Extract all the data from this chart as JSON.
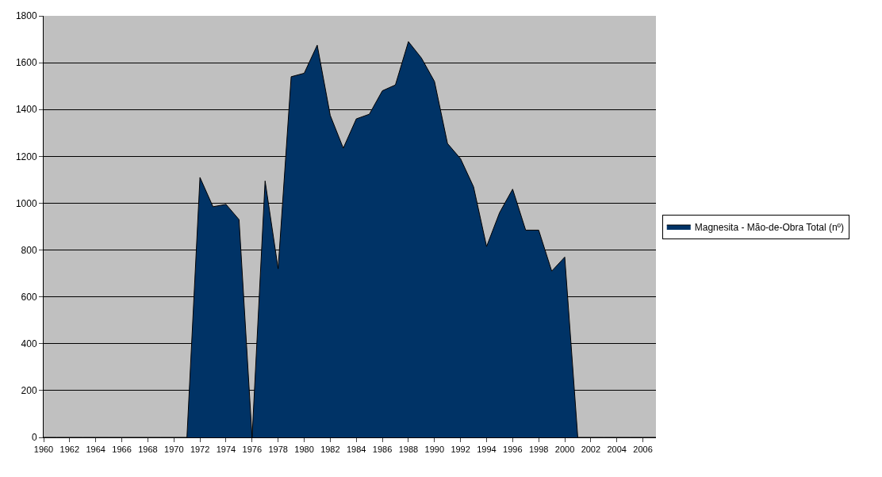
{
  "chart_data": {
    "type": "area",
    "categories": [
      "1960",
      null,
      "1962",
      null,
      "1964",
      null,
      "1966",
      null,
      "1968",
      null,
      "1970",
      null,
      "1972",
      null,
      "1974",
      null,
      "1976",
      null,
      "1978",
      null,
      "1980",
      null,
      "1982",
      null,
      "1984",
      null,
      "1986",
      null,
      "1988",
      null,
      "1990",
      null,
      "1992",
      null,
      "1994",
      null,
      "1996",
      null,
      "1998",
      null,
      "2000",
      null,
      "2002",
      null,
      "2004",
      null,
      "2006",
      null
    ],
    "series": [
      {
        "name": "Magnesita - Mão-de-Obra Total (nº)",
        "color": "#003366",
        "values": [
          0,
          0,
          0,
          0,
          0,
          0,
          0,
          0,
          0,
          0,
          0,
          0,
          1110,
          985,
          995,
          930,
          0,
          1095,
          720,
          1540,
          1555,
          1675,
          1375,
          1235,
          1360,
          1380,
          1480,
          1505,
          1690,
          1620,
          1520,
          1255,
          1190,
          1070,
          815,
          960,
          1060,
          885,
          885,
          710,
          770,
          0,
          0,
          0,
          0,
          0,
          0,
          0
        ]
      }
    ],
    "ylim": [
      0,
      1800
    ],
    "yticks": [
      0,
      200,
      400,
      600,
      800,
      1000,
      1200,
      1400,
      1600,
      1800
    ],
    "grid": "y",
    "legend": "right"
  }
}
